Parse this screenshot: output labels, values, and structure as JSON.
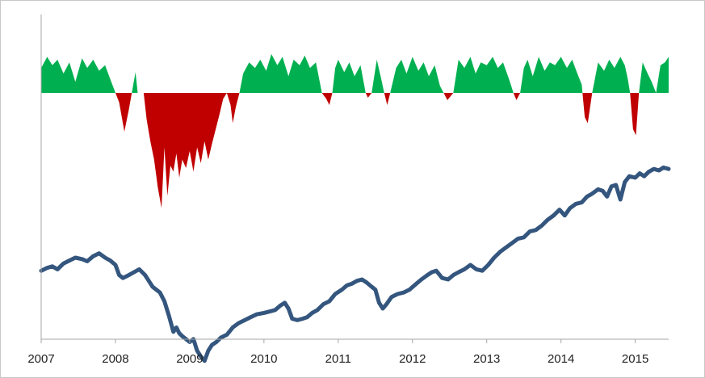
{
  "chart_data": {
    "type": "area+line",
    "title": "",
    "xlabel": "",
    "ylabel": "",
    "xlim": [
      2007.0,
      2015.45
    ],
    "x_ticks": [
      "2007",
      "2008",
      "2009",
      "2010",
      "2011",
      "2012",
      "2013",
      "2014",
      "2015"
    ],
    "grid": false,
    "legend": "none",
    "colors": {
      "positive_area": "#00B050",
      "negative_area": "#C00000",
      "line": "#34567E",
      "axis": "#a6a6a6"
    },
    "indicator_ylim": [
      -1.0,
      0.28
    ],
    "indicator_series": {
      "x": [
        2007.0,
        2007.08,
        2007.15,
        2007.22,
        2007.3,
        2007.38,
        2007.46,
        2007.55,
        2007.62,
        2007.7,
        2007.78,
        2007.86,
        2007.93,
        2008.0,
        2008.05,
        2008.12,
        2008.18,
        2008.22,
        2008.27,
        2008.3,
        2008.35,
        2008.38,
        2008.42,
        2008.47,
        2008.52,
        2008.57,
        2008.62,
        2008.66,
        2008.7,
        2008.74,
        2008.78,
        2008.82,
        2008.86,
        2008.9,
        2008.95,
        2009.0,
        2009.05,
        2009.1,
        2009.15,
        2009.2,
        2009.25,
        2009.3,
        2009.35,
        2009.4,
        2009.45,
        2009.5,
        2009.55,
        2009.58,
        2009.62,
        2009.67,
        2009.72,
        2009.8,
        2009.88,
        2009.95,
        2010.03,
        2010.1,
        2010.18,
        2010.25,
        2010.33,
        2010.4,
        2010.48,
        2010.55,
        2010.62,
        2010.7,
        2010.78,
        2010.84,
        2010.88,
        2010.92,
        2010.96,
        2011.0,
        2011.08,
        2011.15,
        2011.22,
        2011.3,
        2011.37,
        2011.4,
        2011.45,
        2011.52,
        2011.58,
        2011.62,
        2011.66,
        2011.7,
        2011.78,
        2011.85,
        2011.92,
        2012.0,
        2012.08,
        2012.15,
        2012.22,
        2012.3,
        2012.37,
        2012.42,
        2012.47,
        2012.55,
        2012.62,
        2012.7,
        2012.78,
        2012.85,
        2012.92,
        2013.0,
        2013.08,
        2013.15,
        2013.22,
        2013.3,
        2013.36,
        2013.4,
        2013.45,
        2013.5,
        2013.55,
        2013.62,
        2013.7,
        2013.78,
        2013.85,
        2013.92,
        2014.0,
        2014.08,
        2014.15,
        2014.22,
        2014.28,
        2014.32,
        2014.36,
        2014.42,
        2014.5,
        2014.58,
        2014.65,
        2014.72,
        2014.8,
        2014.86,
        2014.9,
        2014.93,
        2014.97,
        2015.01,
        2015.05,
        2015.1,
        2015.15,
        2015.22,
        2015.28,
        2015.34,
        2015.4,
        2015.45
      ],
      "y": [
        0.18,
        0.26,
        0.2,
        0.24,
        0.14,
        0.22,
        0.08,
        0.25,
        0.18,
        0.24,
        0.16,
        0.2,
        0.1,
        0.0,
        -0.08,
        -0.32,
        -0.14,
        0.0,
        0.15,
        0.0,
        0.0,
        0.0,
        -0.22,
        -0.4,
        -0.55,
        -0.78,
        -0.95,
        -0.45,
        -0.85,
        -0.6,
        -0.65,
        -0.5,
        -0.7,
        -0.55,
        -0.62,
        -0.48,
        -0.65,
        -0.45,
        -0.58,
        -0.4,
        -0.55,
        -0.42,
        -0.3,
        -0.18,
        -0.05,
        0.0,
        -0.1,
        -0.25,
        -0.12,
        0.0,
        0.14,
        0.22,
        0.18,
        0.24,
        0.16,
        0.28,
        0.2,
        0.26,
        0.12,
        0.24,
        0.2,
        0.27,
        0.18,
        0.22,
        0.0,
        -0.05,
        -0.1,
        0.0,
        0.18,
        0.24,
        0.15,
        0.22,
        0.12,
        0.2,
        0.0,
        -0.04,
        0.0,
        0.24,
        0.1,
        0.0,
        -0.1,
        0.0,
        0.18,
        0.24,
        0.14,
        0.26,
        0.16,
        0.22,
        0.12,
        0.2,
        0.05,
        0.0,
        -0.06,
        0.0,
        0.24,
        0.18,
        0.26,
        0.14,
        0.22,
        0.2,
        0.26,
        0.18,
        0.22,
        0.1,
        0.0,
        -0.06,
        0.0,
        0.18,
        0.24,
        0.12,
        0.26,
        0.16,
        0.22,
        0.2,
        0.26,
        0.18,
        0.24,
        0.14,
        0.06,
        -0.2,
        -0.25,
        0.0,
        0.22,
        0.16,
        0.24,
        0.18,
        0.26,
        0.2,
        0.1,
        0.0,
        -0.3,
        -0.35,
        0.0,
        0.22,
        0.16,
        0.08,
        0.0,
        0.2,
        0.22,
        0.26
      ]
    },
    "price_ylim": [
      950,
      2150
    ],
    "price_series": {
      "x": [
        2007.0,
        2007.08,
        2007.15,
        2007.22,
        2007.3,
        2007.38,
        2007.46,
        2007.55,
        2007.62,
        2007.7,
        2007.78,
        2007.86,
        2007.93,
        2008.0,
        2008.05,
        2008.1,
        2008.18,
        2008.25,
        2008.32,
        2008.4,
        2008.45,
        2008.5,
        2008.55,
        2008.6,
        2008.66,
        2008.72,
        2008.78,
        2008.82,
        2008.86,
        2008.9,
        2008.95,
        2009.0,
        2009.05,
        2009.1,
        2009.15,
        2009.2,
        2009.25,
        2009.3,
        2009.36,
        2009.42,
        2009.5,
        2009.58,
        2009.66,
        2009.74,
        2009.82,
        2009.9,
        2010.0,
        2010.08,
        2010.15,
        2010.22,
        2010.28,
        2010.33,
        2010.38,
        2010.45,
        2010.52,
        2010.58,
        2010.65,
        2010.72,
        2010.8,
        2010.88,
        2010.96,
        2011.05,
        2011.12,
        2011.18,
        2011.25,
        2011.32,
        2011.38,
        2011.45,
        2011.5,
        2011.55,
        2011.6,
        2011.65,
        2011.72,
        2011.8,
        2011.88,
        2011.96,
        2012.05,
        2012.12,
        2012.2,
        2012.26,
        2012.32,
        2012.4,
        2012.48,
        2012.55,
        2012.62,
        2012.7,
        2012.78,
        2012.86,
        2012.94,
        2013.02,
        2013.1,
        2013.18,
        2013.26,
        2013.34,
        2013.42,
        2013.5,
        2013.58,
        2013.66,
        2013.74,
        2013.82,
        2013.9,
        2013.98,
        2014.05,
        2014.12,
        2014.2,
        2014.28,
        2014.35,
        2014.42,
        2014.5,
        2014.56,
        2014.62,
        2014.68,
        2014.74,
        2014.8,
        2014.86,
        2014.92,
        2015.0,
        2015.06,
        2015.12,
        2015.18,
        2015.25,
        2015.32,
        2015.38,
        2015.45
      ],
      "y": [
        1410,
        1430,
        1440,
        1420,
        1460,
        1480,
        1500,
        1490,
        1475,
        1510,
        1530,
        1500,
        1480,
        1450,
        1380,
        1360,
        1380,
        1400,
        1420,
        1380,
        1340,
        1300,
        1280,
        1260,
        1200,
        1100,
        990,
        1020,
        980,
        960,
        940,
        920,
        940,
        860,
        820,
        790,
        860,
        900,
        920,
        950,
        970,
        1020,
        1050,
        1070,
        1090,
        1110,
        1120,
        1130,
        1140,
        1170,
        1190,
        1150,
        1080,
        1070,
        1080,
        1090,
        1120,
        1140,
        1180,
        1200,
        1250,
        1280,
        1310,
        1320,
        1340,
        1350,
        1330,
        1300,
        1280,
        1190,
        1150,
        1180,
        1230,
        1250,
        1260,
        1280,
        1320,
        1350,
        1380,
        1400,
        1410,
        1360,
        1350,
        1380,
        1400,
        1420,
        1450,
        1420,
        1410,
        1450,
        1500,
        1540,
        1570,
        1600,
        1630,
        1640,
        1680,
        1690,
        1720,
        1760,
        1790,
        1830,
        1790,
        1840,
        1870,
        1880,
        1920,
        1940,
        1970,
        1960,
        1920,
        1990,
        2000,
        1900,
        2020,
        2060,
        2050,
        2080,
        2060,
        2090,
        2110,
        2100,
        2120,
        2110
      ]
    }
  }
}
